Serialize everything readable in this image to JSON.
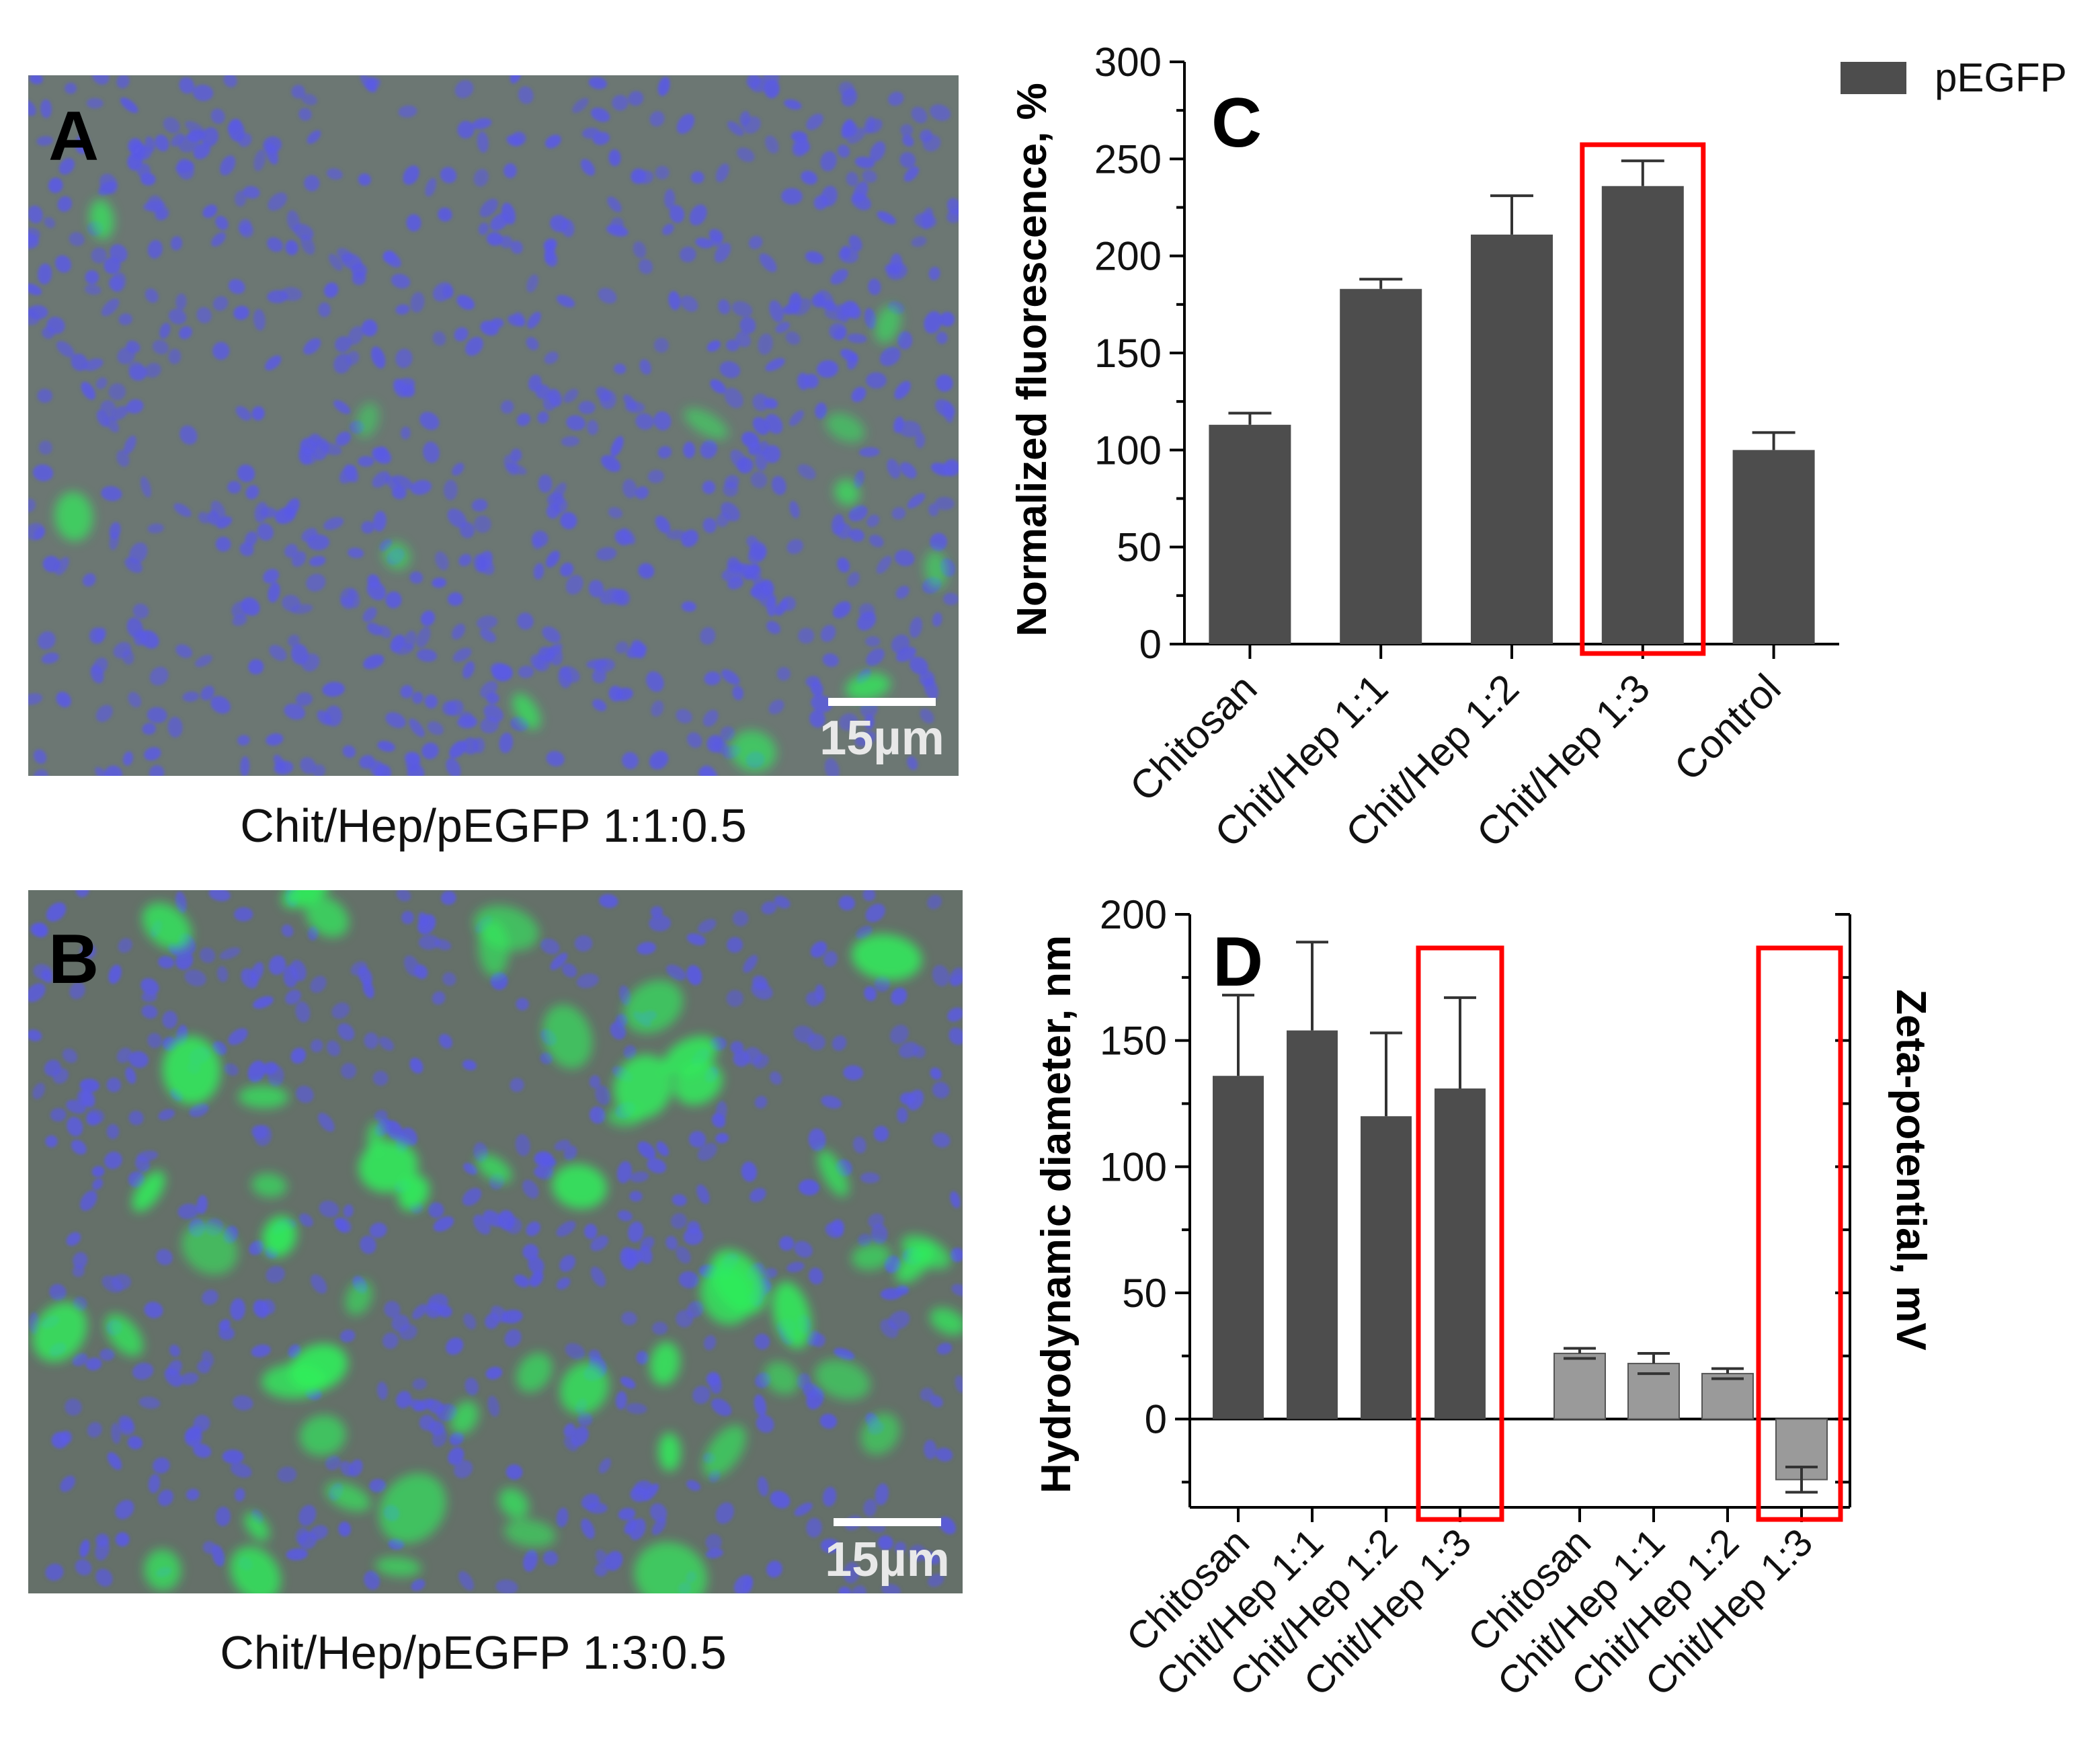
{
  "panels": {
    "A": {
      "letter": "A",
      "caption": "Chit/Hep/pEGFP 1:1:0.5",
      "scalebar_label": "15µm",
      "green_level": "low"
    },
    "B": {
      "letter": "B",
      "caption": "Chit/Hep/pEGFP 1:3:0.5",
      "scalebar_label": "15µm",
      "green_level": "high"
    }
  },
  "colors": {
    "bar_dark": "#4d4d4d",
    "bar_light": "#9a9a9a",
    "highlight": "#ff0000",
    "micro_bg": "#68736e",
    "nuclei": "#5a5ae6",
    "gfp": "#2ef05a"
  },
  "chart_data": [
    {
      "panel": "C",
      "type": "bar",
      "title": "C",
      "legend": [
        "pEGFP"
      ],
      "legend_position": "top-right",
      "ylabel": "Normalized fluorescence, %",
      "xlabel": "",
      "ylim": [
        0,
        300
      ],
      "yticks": [
        0,
        50,
        100,
        150,
        200,
        250,
        300
      ],
      "categories": [
        "Chitosan",
        "Chit/Hep 1:1",
        "Chit/Hep 1:2",
        "Chit/Hep 1:3",
        "Control"
      ],
      "series": [
        {
          "name": "pEGFP",
          "values": [
            113,
            183,
            211,
            236,
            100
          ],
          "errors": [
            6,
            5,
            20,
            13,
            9
          ]
        }
      ],
      "highlighted": [
        "Chit/Hep 1:3"
      ]
    },
    {
      "panel": "D",
      "type": "bar",
      "title": "D",
      "ylabel": "Hydrodynamic diameter, nm",
      "ylabel_right": "Zeta-potential, mV",
      "ylim": [
        -35,
        200
      ],
      "yticks": [
        0,
        50,
        100,
        150,
        200
      ],
      "categories": [
        "Chitosan",
        "Chit/Hep 1:1",
        "Chit/Hep 1:2",
        "Chit/Hep 1:3"
      ],
      "series": [
        {
          "name": "",
          "values": [
            136,
            154,
            120,
            131
          ],
          "errors": [
            32,
            35,
            33,
            36
          ]
        },
        {
          "name": "",
          "values": [
            26,
            22,
            18,
            -24
          ],
          "errors": [
            2,
            4,
            2,
            5
          ]
        }
      ],
      "highlighted": [
        "Chit/Hep 1:3"
      ]
    }
  ]
}
